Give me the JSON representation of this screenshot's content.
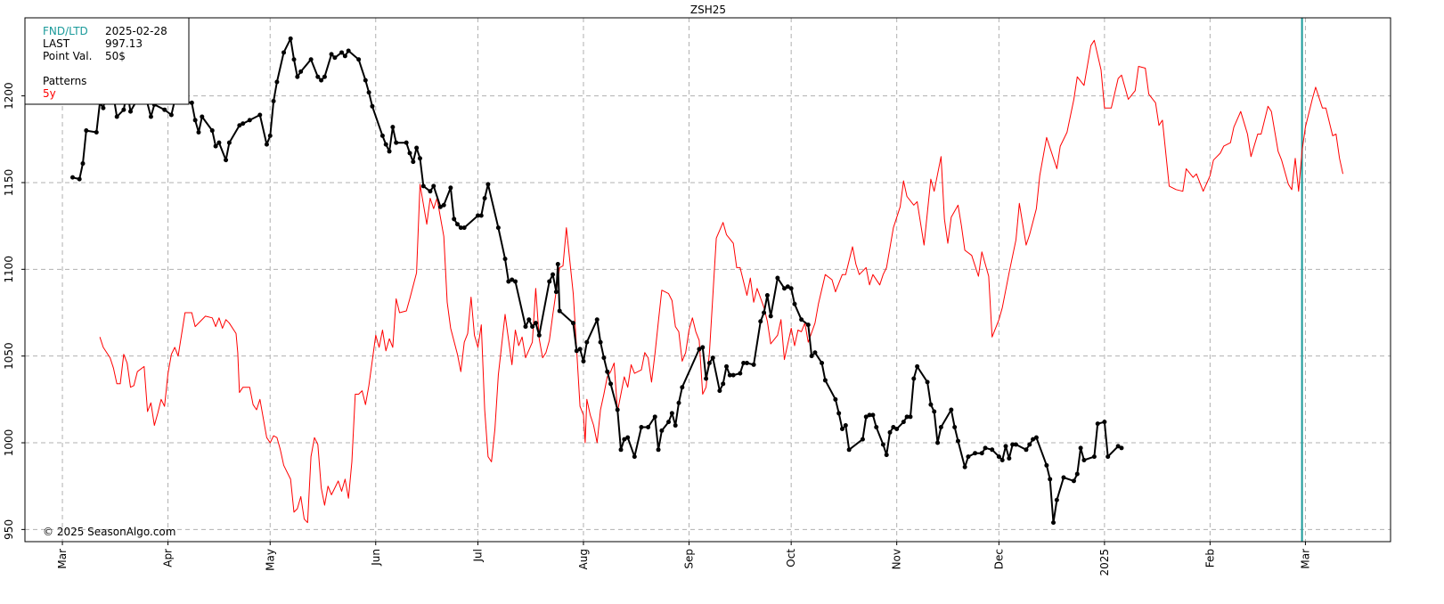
{
  "chart_data": {
    "type": "line",
    "title": "ZSH25",
    "xlim": [
      -11,
      390
    ],
    "ylim": [
      943,
      1245
    ],
    "xticks": [
      {
        "value": 0,
        "label": "Mar"
      },
      {
        "value": 31,
        "label": "Apr"
      },
      {
        "value": 61,
        "label": "May"
      },
      {
        "value": 92,
        "label": "Jun"
      },
      {
        "value": 122,
        "label": "Jul"
      },
      {
        "value": 153,
        "label": "Aug"
      },
      {
        "value": 184,
        "label": "Sep"
      },
      {
        "value": 214,
        "label": "Oct"
      },
      {
        "value": 245,
        "label": "Nov"
      },
      {
        "value": 275,
        "label": "Dec"
      },
      {
        "value": 306,
        "label": "2025"
      },
      {
        "value": 337,
        "label": "Feb"
      },
      {
        "value": 365,
        "label": "Mar"
      }
    ],
    "yticks": [
      950,
      1000,
      1050,
      1100,
      1150,
      1200
    ],
    "grid": true,
    "fnd_x": 364,
    "fnd_color": "#1a9a9a",
    "info": [
      {
        "label": "FND/LTD",
        "value": "2025-02-28"
      },
      {
        "label": "LAST",
        "value": "997.13"
      },
      {
        "label": "Point Val.",
        "value": "50$"
      }
    ],
    "patterns_label": "Patterns",
    "copyright": "© 2025 SeasonAlgo.com",
    "series": [
      {
        "name": "5y",
        "color": "#ff0000",
        "x": [
          11,
          12,
          14,
          15,
          16,
          17,
          18,
          19,
          20,
          21,
          22,
          24,
          25,
          26,
          27,
          28,
          29,
          30,
          31,
          32,
          33,
          34,
          36,
          38,
          39,
          42,
          44,
          45,
          46,
          47,
          48,
          49,
          51,
          51.5,
          52,
          53,
          55,
          56,
          57,
          58,
          60,
          61,
          62,
          63,
          64,
          65,
          67,
          68,
          69,
          70,
          71,
          72,
          73,
          74,
          75,
          76,
          77,
          78,
          79,
          81,
          82,
          83,
          84,
          85,
          86,
          87,
          88,
          89,
          90,
          92,
          93,
          94,
          95,
          96,
          97,
          98,
          99,
          101,
          102,
          104,
          105,
          107,
          108,
          109,
          110,
          112,
          113,
          114,
          116,
          117,
          118,
          119,
          120,
          121,
          122,
          123,
          124,
          125,
          126,
          127,
          128,
          130,
          132,
          133,
          134,
          135,
          136,
          138,
          139,
          140,
          141,
          142,
          143,
          144,
          146,
          147,
          148,
          150,
          151,
          152,
          153,
          153.5,
          154,
          155,
          156,
          157,
          158,
          159,
          160,
          161,
          162,
          163,
          165,
          166,
          167,
          168,
          170,
          171,
          172,
          173,
          174,
          175,
          176,
          178,
          179,
          180,
          181,
          182,
          183,
          184,
          185,
          186,
          187,
          188,
          189,
          190,
          192,
          194,
          195,
          197,
          198,
          199,
          201,
          202,
          203,
          204,
          206,
          207,
          208,
          210,
          211,
          212,
          214,
          215,
          216,
          217,
          218,
          219,
          221,
          222,
          224,
          226,
          227,
          229,
          230,
          232,
          233,
          234,
          236,
          237,
          238,
          240,
          241,
          242,
          244,
          246,
          247,
          248,
          250,
          251,
          253,
          255,
          256,
          258,
          259,
          260,
          261,
          263,
          264,
          265,
          267,
          269,
          270,
          272,
          273,
          275,
          276,
          278,
          280,
          281,
          283,
          284,
          286,
          287,
          289,
          292,
          293,
          295,
          297,
          298,
          300,
          302,
          303,
          305,
          306,
          308,
          310,
          311,
          313,
          315,
          316,
          318,
          319,
          321,
          322,
          323,
          325,
          327,
          329,
          330,
          332,
          333,
          335,
          337,
          338,
          340,
          341,
          343,
          344,
          346,
          348,
          349,
          351,
          352,
          354,
          355,
          357,
          358,
          360,
          361,
          362,
          363,
          364,
          365,
          367,
          368,
          370,
          371,
          373,
          374,
          375,
          376
        ],
        "values": [
          1061,
          1055,
          1049,
          1043,
          1034,
          1034,
          1051,
          1046,
          1032,
          1033,
          1041,
          1044,
          1018,
          1023,
          1010,
          1017,
          1025,
          1021,
          1040,
          1051,
          1055,
          1050,
          1075,
          1075,
          1067,
          1073,
          1072,
          1067,
          1072,
          1066,
          1071,
          1069,
          1063,
          1052,
          1029,
          1032,
          1032,
          1022,
          1019,
          1025,
          1003,
          1000,
          1004,
          1003,
          996,
          987,
          979,
          960,
          962,
          969,
          956,
          954,
          992,
          1003,
          999,
          974,
          964,
          975,
          970,
          978,
          972,
          979,
          968,
          989,
          1028,
          1028,
          1030,
          1022,
          1033,
          1062,
          1055,
          1065,
          1053,
          1060,
          1055,
          1083,
          1075,
          1076,
          1083,
          1098,
          1149,
          1126,
          1141,
          1135,
          1141,
          1119,
          1081,
          1066,
          1051,
          1041,
          1058,
          1063,
          1084,
          1062,
          1055,
          1068,
          1019,
          992,
          989,
          1008,
          1039,
          1074,
          1045,
          1065,
          1056,
          1061,
          1049,
          1058,
          1089,
          1060,
          1049,
          1052,
          1059,
          1074,
          1101,
          1102,
          1124,
          1086,
          1054,
          1021,
          1016,
          1000,
          1025,
          1016,
          1010,
          1000,
          1019,
          1028,
          1038,
          1041,
          1046,
          1018,
          1038,
          1032,
          1045,
          1040,
          1042,
          1052,
          1049,
          1035,
          1051,
          1070,
          1088,
          1086,
          1082,
          1067,
          1064,
          1047,
          1052,
          1065,
          1072,
          1064,
          1059,
          1028,
          1032,
          1052,
          1118,
          1127,
          1120,
          1115,
          1101,
          1101,
          1085,
          1095,
          1081,
          1089,
          1078,
          1070,
          1057,
          1062,
          1071,
          1048,
          1066,
          1056,
          1065,
          1064,
          1069,
          1058,
          1069,
          1080,
          1097,
          1094,
          1087,
          1097,
          1097,
          1113,
          1103,
          1097,
          1101,
          1091,
          1097,
          1091,
          1097,
          1101,
          1124,
          1136,
          1151,
          1142,
          1137,
          1139,
          1114,
          1152,
          1145,
          1165,
          1129,
          1115,
          1130,
          1137,
          1125,
          1111,
          1108,
          1096,
          1110,
          1096,
          1061,
          1071,
          1078,
          1098,
          1117,
          1138,
          1114,
          1120,
          1135,
          1154,
          1176,
          1158,
          1171,
          1179,
          1198,
          1211,
          1206,
          1229,
          1232,
          1215,
          1193,
          1193,
          1210,
          1212,
          1198,
          1203,
          1217,
          1216,
          1201,
          1196,
          1183,
          1186,
          1148,
          1146,
          1145,
          1158,
          1153,
          1155,
          1145,
          1154,
          1163,
          1167,
          1171,
          1173,
          1182,
          1191,
          1178,
          1165,
          1178,
          1178,
          1194,
          1191,
          1168,
          1163,
          1149,
          1146,
          1164,
          1145,
          1168,
          1182,
          1198,
          1205,
          1193,
          1193,
          1177,
          1178,
          1164,
          1155
        ]
      },
      {
        "color": "#000000",
        "x": [
          3,
          5,
          6,
          7,
          10,
          11,
          12,
          13,
          15,
          16,
          18,
          19,
          20,
          22,
          24,
          26,
          27,
          30,
          32,
          34,
          35,
          38,
          39,
          40,
          41,
          44,
          45,
          46,
          48,
          49,
          52,
          53,
          55,
          58,
          60,
          61,
          62,
          63,
          65,
          67,
          68,
          69,
          70,
          73,
          75,
          76,
          77,
          79,
          80,
          82,
          83,
          84,
          87,
          89,
          90,
          91,
          94,
          95,
          96,
          97,
          98,
          101,
          102,
          103,
          104,
          105,
          106,
          108,
          109,
          111,
          112,
          114,
          115,
          116,
          117,
          118,
          122,
          123,
          124,
          125,
          128,
          130,
          131,
          132,
          133,
          136,
          137,
          138,
          139,
          140,
          143,
          144,
          145,
          145.5,
          146,
          150,
          151,
          152,
          153,
          154,
          157,
          158,
          159,
          160,
          161,
          163,
          164,
          165,
          166,
          168,
          170,
          172,
          174,
          175,
          176,
          178,
          179,
          180,
          181,
          182,
          187,
          188,
          189,
          190,
          191,
          193,
          194,
          195,
          196,
          197,
          199,
          200,
          201,
          203,
          205,
          206,
          207,
          208,
          210,
          212,
          213,
          214,
          215,
          217,
          219,
          220,
          221,
          223,
          224,
          227,
          228,
          229,
          230,
          231,
          235,
          236,
          237,
          238,
          239,
          241,
          242,
          243,
          244,
          245,
          247,
          248,
          249,
          250,
          251,
          254,
          255,
          256,
          257,
          258,
          261,
          262,
          263,
          265,
          266,
          268,
          270,
          271,
          273,
          275,
          276,
          277,
          278,
          279,
          280,
          283,
          284,
          285,
          286,
          289,
          290,
          291,
          292,
          294,
          297,
          298,
          299,
          300,
          303,
          304,
          306,
          307,
          310,
          311
        ],
        "values": [
          1153,
          1152,
          1161,
          1180,
          1179,
          1196,
          1193,
          1203,
          1200,
          1188,
          1192,
          1203,
          1191,
          1198,
          1203,
          1188,
          1195,
          1192,
          1189,
          1206,
          1197,
          1196,
          1186,
          1179,
          1188,
          1180,
          1171,
          1173,
          1163,
          1173,
          1183,
          1184,
          1186,
          1189,
          1172,
          1177,
          1197,
          1208,
          1225,
          1233,
          1221,
          1211,
          1214,
          1221,
          1211,
          1209,
          1211,
          1224,
          1222,
          1225,
          1223,
          1226,
          1221,
          1209,
          1202,
          1194,
          1177,
          1172,
          1168,
          1182,
          1173,
          1173,
          1167,
          1162,
          1170,
          1164,
          1148,
          1145,
          1148,
          1136,
          1137,
          1147,
          1129,
          1126,
          1124,
          1124,
          1131,
          1131,
          1141,
          1149,
          1124,
          1106,
          1093,
          1094,
          1093,
          1067,
          1071,
          1067,
          1069,
          1062,
          1093,
          1097,
          1087,
          1103,
          1076,
          1069,
          1053,
          1054,
          1047,
          1058,
          1071,
          1058,
          1049,
          1041,
          1034,
          1019,
          996,
          1002,
          1003,
          992,
          1009,
          1009,
          1015,
          996,
          1007,
          1012,
          1017,
          1010,
          1023,
          1032,
          1054,
          1055,
          1037,
          1046,
          1049,
          1030,
          1034,
          1044,
          1039,
          1039,
          1040,
          1046,
          1046,
          1045,
          1070,
          1075,
          1085,
          1073,
          1095,
          1089,
          1090,
          1089,
          1080,
          1071,
          1068,
          1050,
          1052,
          1046,
          1036,
          1025,
          1017,
          1008,
          1010,
          996,
          1002,
          1015,
          1016,
          1016,
          1009,
          999,
          993,
          1006,
          1009,
          1008,
          1012,
          1015,
          1015,
          1037,
          1044,
          1035,
          1022,
          1018,
          1000,
          1009,
          1019,
          1009,
          1001,
          986,
          992,
          994,
          994,
          997,
          996,
          992,
          990,
          998,
          991,
          999,
          999,
          996,
          999,
          1002,
          1003,
          987,
          979,
          954,
          967,
          980,
          978,
          982,
          997,
          990,
          992,
          1011,
          1012,
          992,
          998,
          997
        ]
      }
    ]
  }
}
